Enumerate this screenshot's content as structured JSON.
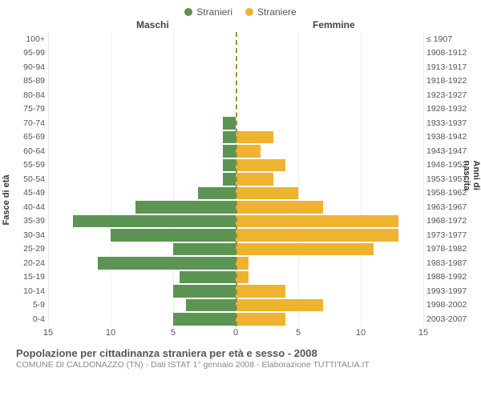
{
  "legend": {
    "male": {
      "label": "Stranieri",
      "color": "#5c9453"
    },
    "female": {
      "label": "Straniere",
      "color": "#f0b32f"
    }
  },
  "headers": {
    "left": "Maschi",
    "right": "Femmine"
  },
  "axes": {
    "left_title": "Fasce di età",
    "right_title": "Anni di nascita",
    "x_ticks": [
      15,
      10,
      5,
      0,
      5,
      10,
      15
    ],
    "x_max": 15
  },
  "colors": {
    "male_bar": "#5c9453",
    "female_bar": "#f0b32f",
    "center_line": "#9e8f3a",
    "grid": "#eeeeee",
    "background": "#ffffff"
  },
  "rows": [
    {
      "age": "100+",
      "birth": "≤ 1907",
      "m": 0,
      "f": 0
    },
    {
      "age": "95-99",
      "birth": "1908-1912",
      "m": 0,
      "f": 0
    },
    {
      "age": "90-94",
      "birth": "1913-1917",
      "m": 0,
      "f": 0
    },
    {
      "age": "85-89",
      "birth": "1918-1922",
      "m": 0,
      "f": 0
    },
    {
      "age": "80-84",
      "birth": "1923-1927",
      "m": 0,
      "f": 0
    },
    {
      "age": "75-79",
      "birth": "1928-1932",
      "m": 0,
      "f": 0
    },
    {
      "age": "70-74",
      "birth": "1933-1937",
      "m": 1,
      "f": 0
    },
    {
      "age": "65-69",
      "birth": "1938-1942",
      "m": 1,
      "f": 3
    },
    {
      "age": "60-64",
      "birth": "1943-1947",
      "m": 1,
      "f": 2
    },
    {
      "age": "55-59",
      "birth": "1948-1952",
      "m": 1,
      "f": 4
    },
    {
      "age": "50-54",
      "birth": "1953-1957",
      "m": 1,
      "f": 3
    },
    {
      "age": "45-49",
      "birth": "1958-1962",
      "m": 3,
      "f": 5
    },
    {
      "age": "40-44",
      "birth": "1963-1967",
      "m": 8,
      "f": 7
    },
    {
      "age": "35-39",
      "birth": "1968-1972",
      "m": 13,
      "f": 13
    },
    {
      "age": "30-34",
      "birth": "1973-1977",
      "m": 10,
      "f": 13
    },
    {
      "age": "25-29",
      "birth": "1978-1982",
      "m": 5,
      "f": 11
    },
    {
      "age": "20-24",
      "birth": "1983-1987",
      "m": 11,
      "f": 1
    },
    {
      "age": "15-19",
      "birth": "1988-1992",
      "m": 4.5,
      "f": 1
    },
    {
      "age": "10-14",
      "birth": "1993-1997",
      "m": 5,
      "f": 4
    },
    {
      "age": "5-9",
      "birth": "1998-2002",
      "m": 4,
      "f": 7
    },
    {
      "age": "0-4",
      "birth": "2003-2007",
      "m": 5,
      "f": 4
    }
  ],
  "footer": {
    "title": "Popolazione per cittadinanza straniera per età e sesso - 2008",
    "subtitle": "COMUNE DI CALDONAZZO (TN) - Dati ISTAT 1° gennaio 2008 - Elaborazione TUTTITALIA.IT"
  }
}
